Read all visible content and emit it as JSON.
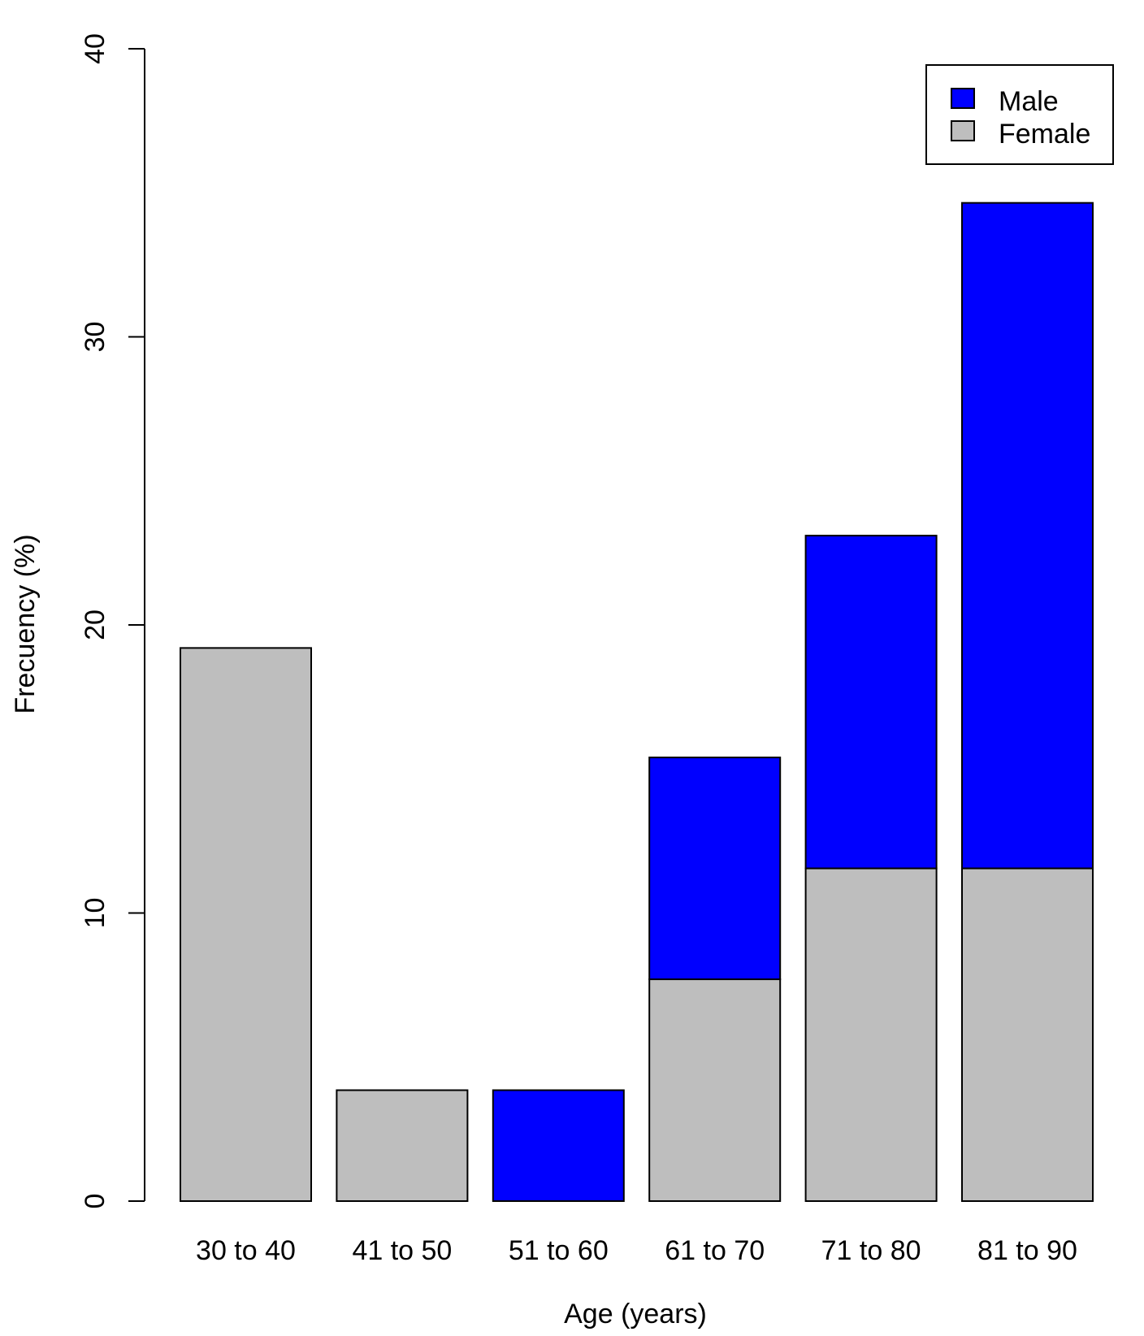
{
  "chart_data": {
    "type": "bar",
    "stacked": true,
    "categories": [
      "30 to 40",
      "41 to 50",
      "51 to 60",
      "61 to 70",
      "71 to 80",
      "81 to 90"
    ],
    "series": [
      {
        "name": "Female",
        "color": "#bebebe",
        "values": [
          19.2,
          3.85,
          0,
          7.7,
          11.55,
          11.55
        ]
      },
      {
        "name": "Male",
        "color": "#0000ff",
        "values": [
          0,
          0,
          3.85,
          7.7,
          11.55,
          23.1
        ]
      }
    ],
    "title": "",
    "xlabel": "Age (years)",
    "ylabel": "Frecuency (%)",
    "ylim": [
      0,
      40
    ],
    "yticks": [
      0,
      10,
      20,
      30,
      40
    ],
    "legend": {
      "position": "top-right",
      "entries": [
        {
          "label": "Male",
          "color": "#0000ff"
        },
        {
          "label": "Female",
          "color": "#bebebe"
        }
      ]
    },
    "grid": false
  }
}
